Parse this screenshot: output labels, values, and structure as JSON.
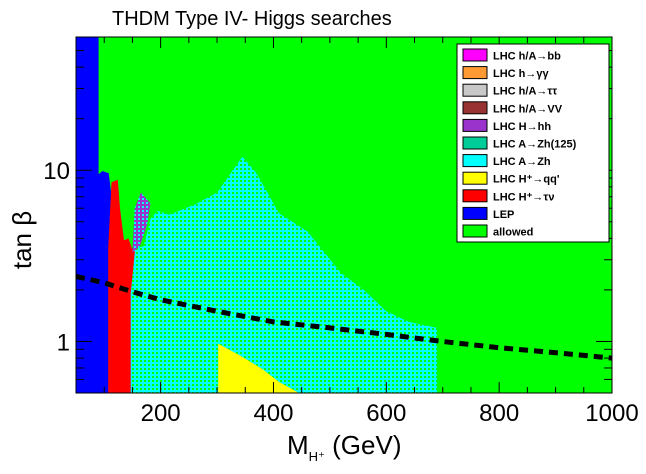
{
  "chart_data": {
    "type": "heatmap",
    "title": "THDM Type IV- Higgs searches",
    "xlabel": "M",
    "xlabel_sub": "H⁺",
    "xlabel_unit": " (GeV)",
    "ylabel": "tan β",
    "xlim": [
      50,
      1000
    ],
    "ylim": [
      0.5,
      60
    ],
    "yscale": "log",
    "x_ticks": [
      200,
      400,
      600,
      800,
      1000
    ],
    "y_ticks": [
      1,
      10
    ],
    "legend_position": "top-right",
    "legend": [
      {
        "label": "LHC h/A→bb",
        "color": "#ff00ff"
      },
      {
        "label": "LHC h→γγ",
        "color": "#ff9933"
      },
      {
        "label": "LHC h/A→ττ",
        "color": "#c8c8c8"
      },
      {
        "label": "LHC h/A→VV",
        "color": "#993333"
      },
      {
        "label": "LHC H→hh",
        "color": "#9933cc"
      },
      {
        "label": "LHC A→Zh(125)",
        "color": "#00cc99"
      },
      {
        "label": "LHC A→Zh",
        "color": "#00ffff"
      },
      {
        "label": "LHC H⁺→qq'",
        "color": "#ffff00"
      },
      {
        "label": "LHC H⁺→τν",
        "color": "#ff0000"
      },
      {
        "label": "LEP",
        "color": "#0000ff"
      },
      {
        "label": "allowed",
        "color": "#00ff00"
      }
    ],
    "regions": [
      {
        "name": "LEP",
        "polygon": [
          [
            50,
            0.5
          ],
          [
            50,
            60
          ],
          [
            90,
            60
          ],
          [
            90,
            9.5
          ],
          [
            97,
            9.9
          ],
          [
            108,
            9.6
          ],
          [
            112,
            7.5
          ],
          [
            112,
            0.5
          ]
        ]
      },
      {
        "name": "LHC H⁺→τν",
        "polygon": [
          [
            107,
            0.5
          ],
          [
            107,
            3.5
          ],
          [
            113,
            8.5
          ],
          [
            124,
            8.8
          ],
          [
            128,
            6
          ],
          [
            135,
            3.9
          ],
          [
            143,
            4.0
          ],
          [
            149,
            3.5
          ],
          [
            160,
            3.3
          ],
          [
            160,
            0.5
          ]
        ]
      },
      {
        "name": "LHC A→Zh",
        "polygon": [
          [
            147,
            0.5
          ],
          [
            147,
            1.9
          ],
          [
            155,
            3.5
          ],
          [
            170,
            3.6
          ],
          [
            182,
            5.2
          ],
          [
            195,
            5.8
          ],
          [
            215,
            5.5
          ],
          [
            260,
            6.3
          ],
          [
            300,
            7.4
          ],
          [
            345,
            12
          ],
          [
            370,
            9.6
          ],
          [
            410,
            5.6
          ],
          [
            460,
            4.4
          ],
          [
            520,
            2.5
          ],
          [
            560,
            2.0
          ],
          [
            600,
            1.5
          ],
          [
            640,
            1.3
          ],
          [
            690,
            1.2
          ],
          [
            690,
            0.5
          ]
        ]
      },
      {
        "name": "LHC H→hh",
        "polygon": [
          [
            150,
            3.3
          ],
          [
            154,
            6.0
          ],
          [
            165,
            7.4
          ],
          [
            182,
            6.4
          ],
          [
            176,
            4.8
          ],
          [
            163,
            3.6
          ]
        ]
      },
      {
        "name": "LHC H⁺→qq'",
        "polygon": [
          [
            302,
            0.5
          ],
          [
            302,
            0.97
          ],
          [
            340,
            0.83
          ],
          [
            380,
            0.69
          ],
          [
            410,
            0.58
          ],
          [
            445,
            0.5
          ]
        ]
      }
    ],
    "series": [
      {
        "name": "reference line",
        "style": "dashed",
        "color": "#000000",
        "x": [
          50,
          100,
          150,
          200,
          300,
          400,
          500,
          600,
          700,
          800,
          900,
          1000
        ],
        "y": [
          2.4,
          2.2,
          1.95,
          1.75,
          1.5,
          1.3,
          1.2,
          1.1,
          1.0,
          0.92,
          0.86,
          0.8
        ]
      }
    ]
  }
}
